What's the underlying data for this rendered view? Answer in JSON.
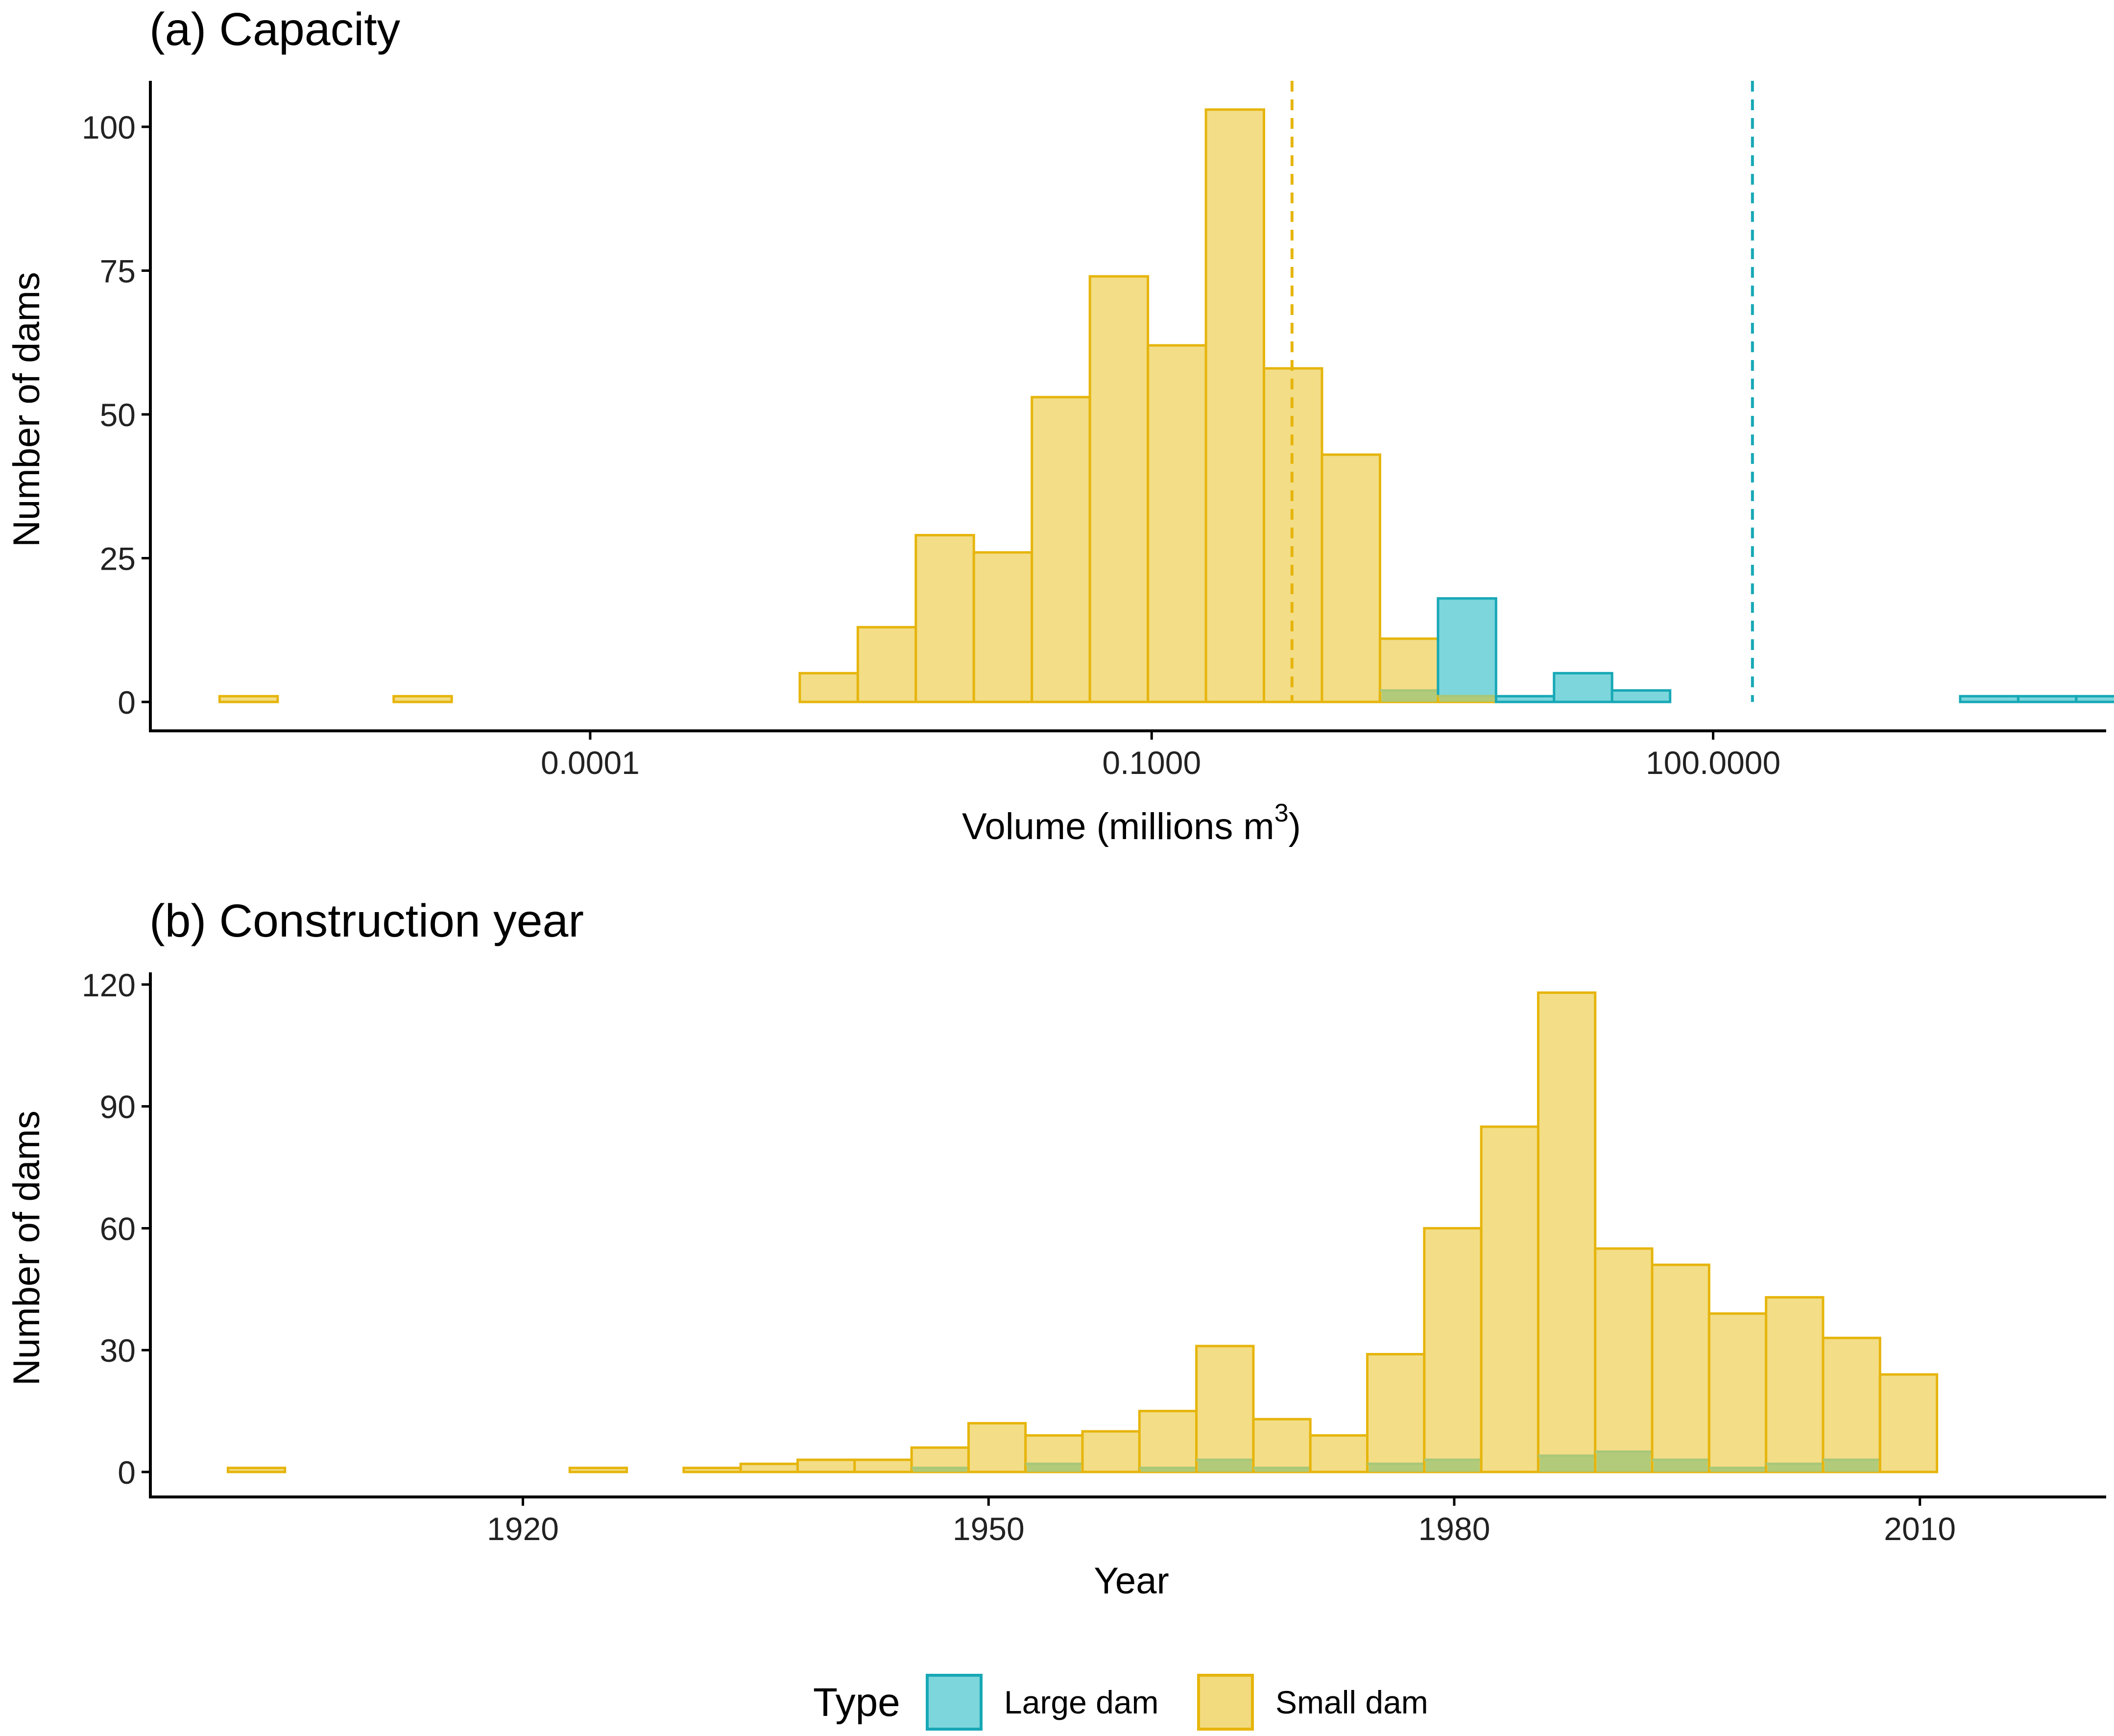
{
  "colors": {
    "large_fill": "#7dd6dc",
    "large_stroke": "#17a8b6",
    "small_fill": "#f2da7e",
    "small_stroke": "#e6b50c",
    "overlap_fill": "#a8c878",
    "axis": "#000000"
  },
  "legend": {
    "title": "Type",
    "items": [
      {
        "key": "large",
        "label": "Large dam"
      },
      {
        "key": "small",
        "label": "Small dam"
      }
    ]
  },
  "chart_data": [
    {
      "type": "bar",
      "title": "(a) Capacity",
      "xlabel": "Volume (millions m",
      "xlabel_sup": "3",
      "xlabel_close": ")",
      "ylabel": "Number of dams",
      "x_scale": "log10",
      "xlim_log10": [
        -6.35,
        4.1
      ],
      "ylim": [
        0,
        108
      ],
      "xticks": [
        {
          "log10": -4,
          "label": "0.0001"
        },
        {
          "log10": -1,
          "label": "0.1000"
        },
        {
          "log10": 2,
          "label": "100.0000"
        }
      ],
      "yticks": [
        0,
        25,
        50,
        75,
        100
      ],
      "bin_start_log10": -5.98,
      "bin_width_log10": 0.31,
      "series": [
        {
          "name": "Small dam",
          "values": [
            1,
            0,
            0,
            1,
            0,
            0,
            0,
            0,
            0,
            0,
            5,
            13,
            29,
            26,
            53,
            74,
            62,
            103,
            58,
            43,
            11,
            1,
            0,
            0,
            0,
            0,
            0,
            0,
            0,
            0,
            0,
            0,
            0
          ]
        },
        {
          "name": "Large dam",
          "values": [
            0,
            0,
            0,
            0,
            0,
            0,
            0,
            0,
            0,
            0,
            0,
            0,
            0,
            0,
            0,
            0,
            0,
            0,
            0,
            0,
            2,
            18,
            1,
            5,
            2,
            0,
            0,
            0,
            0,
            0,
            1,
            1,
            1
          ]
        }
      ],
      "median_lines": [
        {
          "series": "Small dam",
          "log10": -0.25
        },
        {
          "series": "Large dam",
          "log10": 2.21
        }
      ]
    },
    {
      "type": "bar",
      "title": "(b) Construction year",
      "xlabel": "Year",
      "ylabel": "Number of dams",
      "xlim": [
        1896,
        2022
      ],
      "ylim": [
        0,
        123
      ],
      "xticks": [
        1920,
        1950,
        1980,
        2010
      ],
      "yticks": [
        0,
        30,
        60,
        90,
        120
      ],
      "bin_start": 1901,
      "bin_width": 3.67,
      "series": [
        {
          "name": "Small dam",
          "values": [
            1,
            0,
            0,
            0,
            0,
            0,
            1,
            0,
            1,
            2,
            3,
            3,
            6,
            12,
            9,
            10,
            15,
            31,
            13,
            9,
            29,
            60,
            85,
            118,
            55,
            51,
            39,
            43,
            33,
            24
          ]
        },
        {
          "name": "Large dam",
          "values": [
            0,
            0,
            0,
            0,
            0,
            0,
            0,
            0,
            0,
            0,
            0,
            0,
            1,
            0,
            2,
            0,
            1,
            3,
            1,
            0,
            2,
            3,
            0,
            4,
            5,
            3,
            1,
            2,
            3,
            0
          ]
        }
      ]
    }
  ]
}
